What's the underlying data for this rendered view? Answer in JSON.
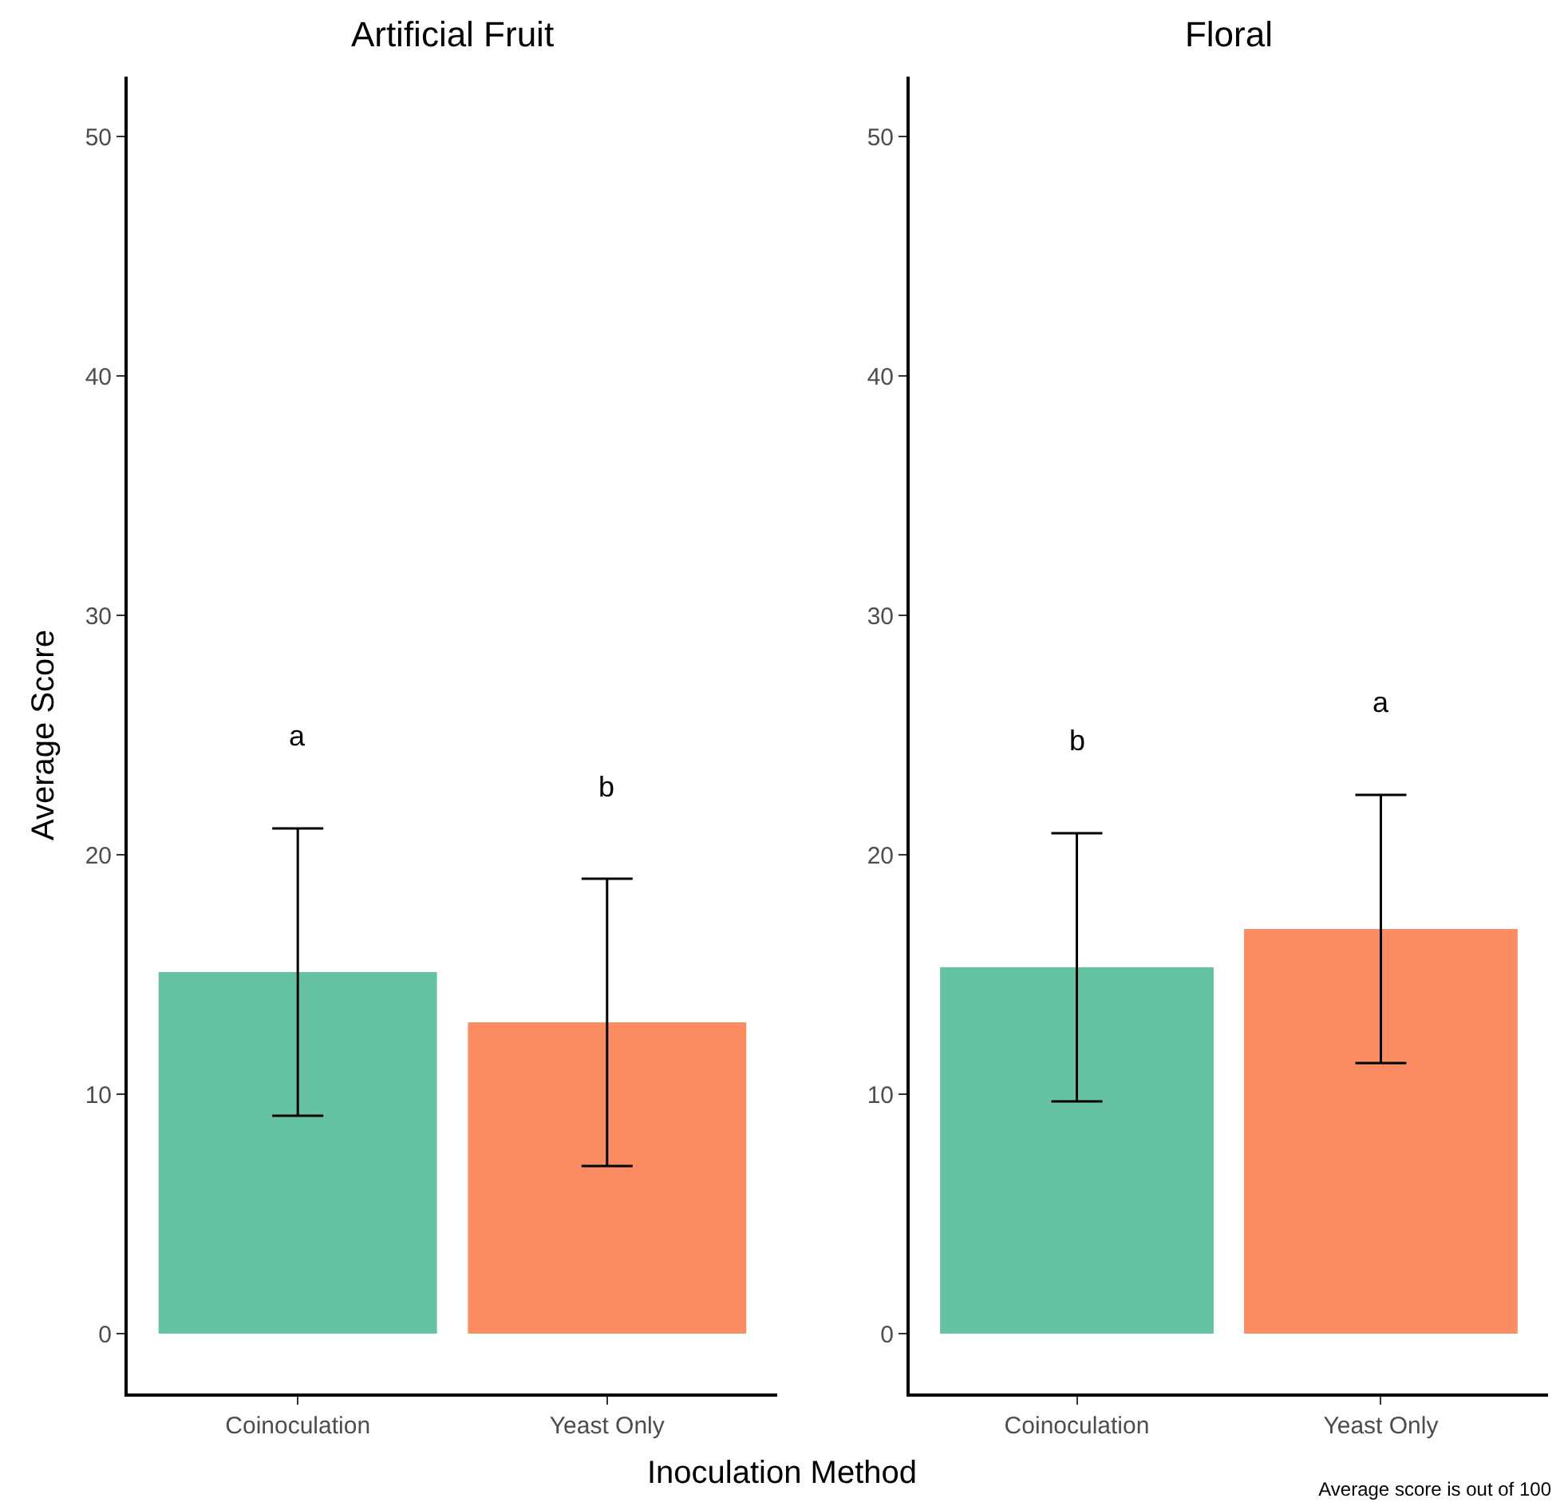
{
  "chart_data": [
    {
      "type": "bar",
      "title": "Artificial Fruit",
      "xlabel": "Inoculation Method",
      "ylabel": "Average Score",
      "categories": [
        "Coinoculation",
        "Yeast Only"
      ],
      "values": [
        15.1,
        13.0
      ],
      "colors": [
        "#66c2a5",
        "#fc8d62"
      ],
      "errors": [
        6.0,
        6.0
      ],
      "ylim": [
        -2.5,
        52.5
      ],
      "yticks": [
        0,
        10,
        20,
        30,
        40,
        50
      ],
      "annotations": [
        "a",
        "b",
        "Average score is out of 100"
      ]
    },
    {
      "type": "bar",
      "title": "Floral",
      "categories": [
        "Coinoculation",
        "Yeast Only"
      ],
      "values": [
        15.3,
        16.9
      ],
      "colors": [
        "#66c2a5",
        "#fc8d62"
      ],
      "errors": [
        5.6,
        5.6
      ],
      "ylim": [
        -2.5,
        52.5
      ],
      "yticks": [
        0,
        10,
        20,
        30,
        40,
        50
      ],
      "annotations": [
        "b",
        "a"
      ]
    }
  ]
}
